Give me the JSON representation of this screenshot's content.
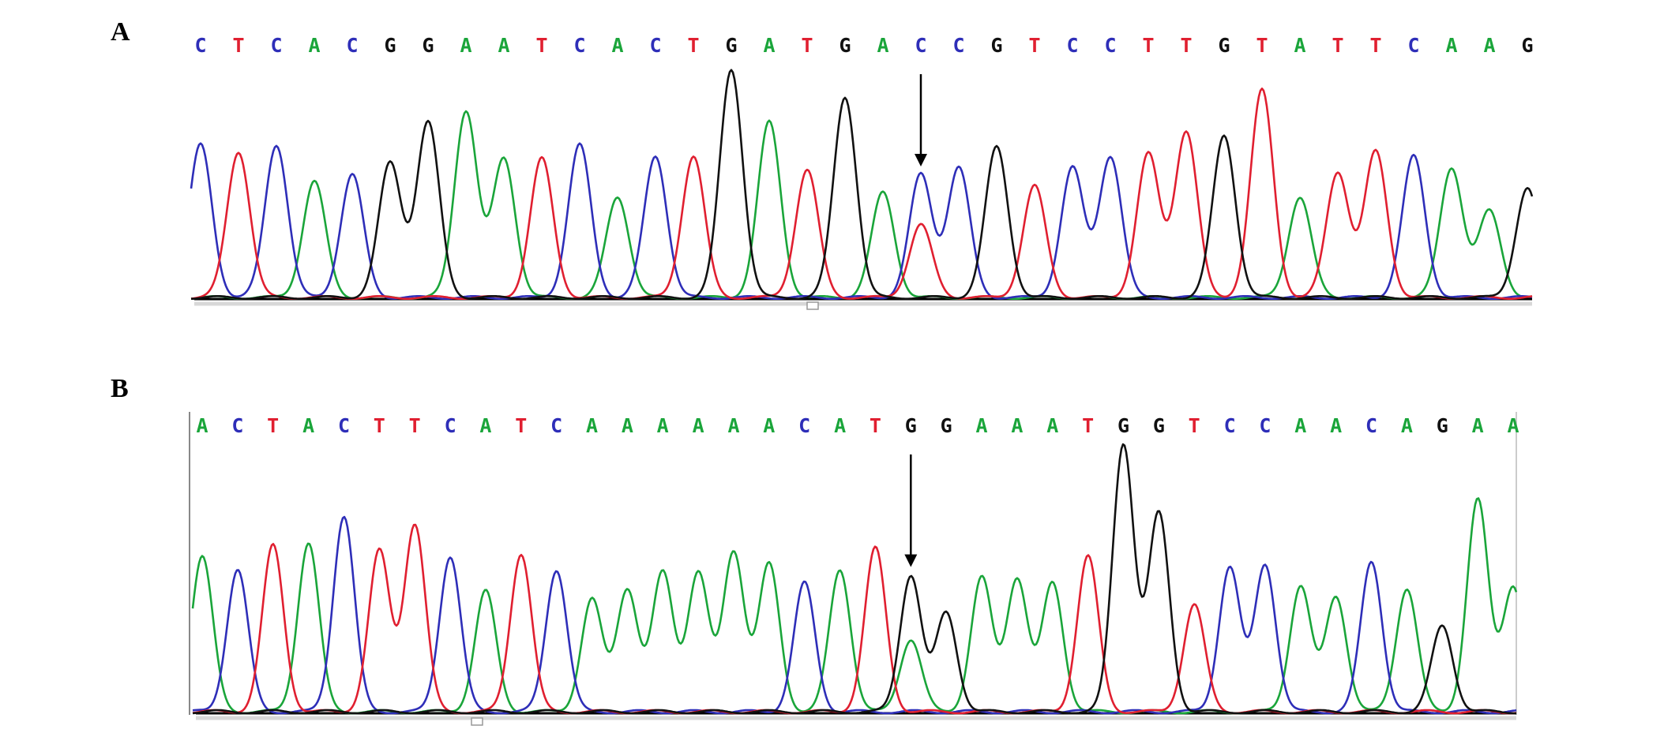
{
  "colors": {
    "A": "#1aa53a",
    "C": "#2e2eb8",
    "G": "#111111",
    "T": "#e01f30"
  },
  "chart_data": [
    {
      "type": "line",
      "panel": "A",
      "sequence": [
        "C",
        "T",
        "C",
        "A",
        "C",
        "G",
        "G",
        "A",
        "A",
        "T",
        "C",
        "A",
        "C",
        "T",
        "G",
        "A",
        "T",
        "G",
        "A",
        "C",
        "C",
        "G",
        "T",
        "C",
        "C",
        "T",
        "T",
        "G",
        "T",
        "A",
        "T",
        "T",
        "C",
        "A",
        "A",
        "G"
      ],
      "peak_heights": [
        0.67,
        0.64,
        0.67,
        0.51,
        0.54,
        0.59,
        0.77,
        0.82,
        0.61,
        0.61,
        0.67,
        0.44,
        0.62,
        0.62,
        1.0,
        0.77,
        0.56,
        0.88,
        0.46,
        0.54,
        0.57,
        0.66,
        0.49,
        0.57,
        0.62,
        0.63,
        0.73,
        0.71,
        0.91,
        0.44,
        0.55,
        0.64,
        0.62,
        0.57,
        0.38,
        0.48
      ],
      "secondary_peaks": [
        {
          "position": 19,
          "base": "T",
          "height": 0.32
        }
      ],
      "arrow_position": 19
    },
    {
      "type": "line",
      "panel": "B",
      "sequence": [
        "A",
        "C",
        "T",
        "A",
        "C",
        "T",
        "T",
        "C",
        "A",
        "T",
        "C",
        "A",
        "A",
        "A",
        "A",
        "A",
        "A",
        "C",
        "A",
        "T",
        "G",
        "G",
        "A",
        "A",
        "A",
        "T",
        "G",
        "G",
        "T",
        "C",
        "C",
        "A",
        "A",
        "C",
        "A",
        "G",
        "A",
        "A"
      ],
      "peak_heights": [
        0.58,
        0.53,
        0.62,
        0.63,
        0.73,
        0.6,
        0.7,
        0.58,
        0.45,
        0.59,
        0.53,
        0.42,
        0.46,
        0.52,
        0.52,
        0.6,
        0.55,
        0.48,
        0.53,
        0.61,
        0.51,
        0.37,
        0.5,
        0.5,
        0.48,
        0.58,
        1.0,
        0.74,
        0.4,
        0.54,
        0.55,
        0.47,
        0.43,
        0.56,
        0.46,
        0.32,
        0.79,
        0.47
      ],
      "secondary_peaks": [
        {
          "position": 20,
          "base": "A",
          "height": 0.27
        }
      ],
      "arrow_position": 20
    }
  ]
}
